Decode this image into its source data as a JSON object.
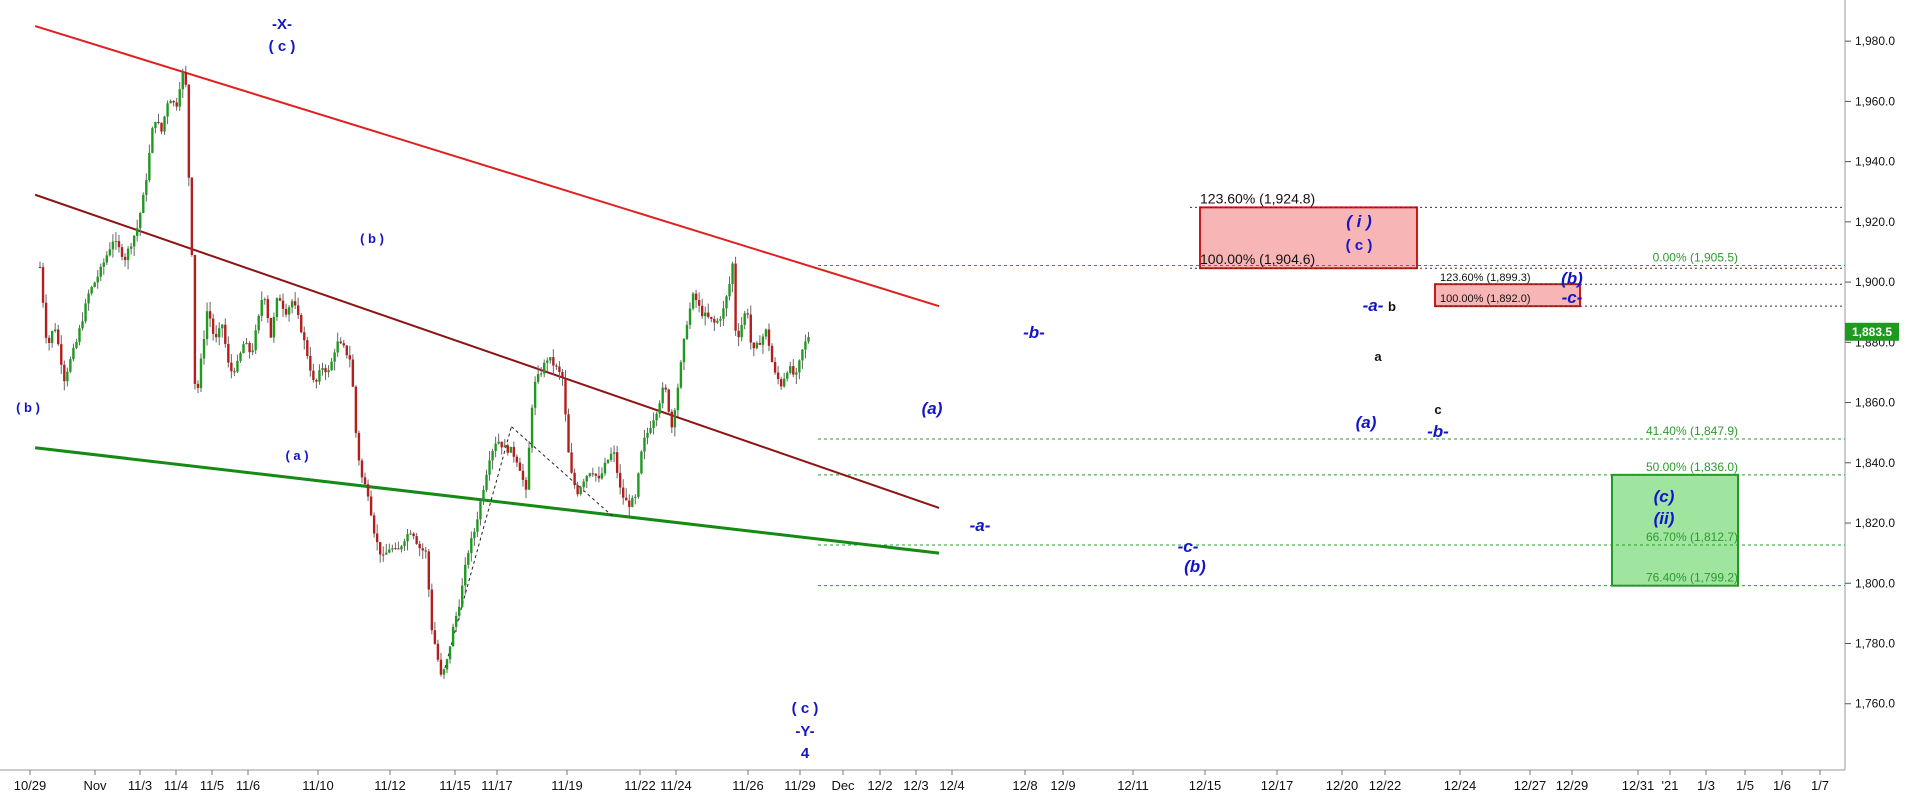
{
  "chart_data": {
    "type": "candlestick",
    "y_axis": {
      "ticks": [
        1760,
        1780,
        1800,
        1820,
        1840,
        1860,
        1880,
        1900,
        1920,
        1940,
        1960,
        1980
      ],
      "tick_labels": [
        "1,760.0",
        "1,780.0",
        "1,800.0",
        "1,820.0",
        "1,840.0",
        "1,860.0",
        "1,880.0",
        "1,900.0",
        "1,920.0",
        "1,940.0",
        "1,960.0",
        "1,980.0"
      ],
      "range": [
        1738,
        1992
      ],
      "position": "right"
    },
    "x_axis": {
      "tick_labels": [
        "10/29",
        "Nov",
        "11/3",
        "11/4",
        "11/5",
        "11/6",
        "11/10",
        "11/12",
        "11/15",
        "11/17",
        "11/19",
        "11/22",
        "11/24",
        "11/26",
        "11/29",
        "Dec",
        "12/2",
        "12/3",
        "12/4",
        "12/8",
        "12/9",
        "12/11",
        "12/15",
        "12/17",
        "12/20",
        "12/22",
        "12/24",
        "12/27",
        "12/29",
        "12/31",
        "'21",
        "1/3",
        "1/5",
        "1/6",
        "1/7"
      ]
    },
    "last_price": {
      "label": "1,883.5",
      "value": 1883.5,
      "color": "#1e9a1e"
    },
    "price_path": [
      [
        0.0,
        1905
      ],
      [
        0.3,
        1878
      ],
      [
        0.6,
        1886
      ],
      [
        1.0,
        1868
      ],
      [
        1.5,
        1880
      ],
      [
        2.0,
        1896
      ],
      [
        2.5,
        1904
      ],
      [
        3.0,
        1914
      ],
      [
        3.5,
        1908
      ],
      [
        4.0,
        1918
      ],
      [
        4.3,
        1930
      ],
      [
        4.7,
        1955
      ],
      [
        5.0,
        1950
      ],
      [
        5.3,
        1962
      ],
      [
        5.6,
        1958
      ],
      [
        5.85,
        1970
      ],
      [
        6.0,
        1965
      ],
      [
        6.1,
        1940
      ],
      [
        6.25,
        1910
      ],
      [
        6.4,
        1858
      ],
      [
        6.6,
        1872
      ],
      [
        6.9,
        1892
      ],
      [
        7.2,
        1880
      ],
      [
        7.5,
        1886
      ],
      [
        7.8,
        1870
      ],
      [
        8.1,
        1872
      ],
      [
        8.4,
        1880
      ],
      [
        8.7,
        1876
      ],
      [
        9.0,
        1888
      ],
      [
        9.2,
        1898
      ],
      [
        9.5,
        1882
      ],
      [
        9.8,
        1896
      ],
      [
        10.1,
        1890
      ],
      [
        10.4,
        1894
      ],
      [
        10.7,
        1886
      ],
      [
        11.0,
        1876
      ],
      [
        11.3,
        1865
      ],
      [
        11.6,
        1872
      ],
      [
        11.9,
        1870
      ],
      [
        12.2,
        1880
      ],
      [
        12.5,
        1878
      ],
      [
        12.8,
        1874
      ],
      [
        13.0,
        1850
      ],
      [
        13.2,
        1836
      ],
      [
        13.5,
        1830
      ],
      [
        13.8,
        1815
      ],
      [
        14.1,
        1808
      ],
      [
        14.4,
        1812
      ],
      [
        14.7,
        1810
      ],
      [
        15.0,
        1815
      ],
      [
        15.3,
        1818
      ],
      [
        15.6,
        1812
      ],
      [
        15.9,
        1810
      ],
      [
        16.1,
        1786
      ],
      [
        16.3,
        1778
      ],
      [
        16.5,
        1769
      ],
      [
        16.7,
        1772
      ],
      [
        17.0,
        1785
      ],
      [
        17.3,
        1795
      ],
      [
        17.6,
        1810
      ],
      [
        17.9,
        1818
      ],
      [
        18.2,
        1830
      ],
      [
        18.5,
        1842
      ],
      [
        18.8,
        1848
      ],
      [
        19.1,
        1845
      ],
      [
        19.4,
        1844
      ],
      [
        19.7,
        1840
      ],
      [
        20.0,
        1830
      ],
      [
        20.3,
        1865
      ],
      [
        20.6,
        1870
      ],
      [
        20.9,
        1875
      ],
      [
        21.2,
        1872
      ],
      [
        21.5,
        1868
      ],
      [
        21.8,
        1838
      ],
      [
        22.1,
        1830
      ],
      [
        22.4,
        1835
      ],
      [
        22.7,
        1838
      ],
      [
        23.0,
        1834
      ],
      [
        23.3,
        1840
      ],
      [
        23.6,
        1844
      ],
      [
        23.9,
        1830
      ],
      [
        24.2,
        1826
      ],
      [
        24.5,
        1828
      ],
      [
        24.8,
        1846
      ],
      [
        25.1,
        1852
      ],
      [
        25.4,
        1858
      ],
      [
        25.7,
        1866
      ],
      [
        26.0,
        1852
      ],
      [
        26.3,
        1868
      ],
      [
        26.6,
        1886
      ],
      [
        26.9,
        1896
      ],
      [
        27.2,
        1890
      ],
      [
        27.5,
        1888
      ],
      [
        27.8,
        1886
      ],
      [
        28.1,
        1890
      ],
      [
        28.35,
        1898
      ],
      [
        28.5,
        1906
      ],
      [
        28.65,
        1880
      ],
      [
        28.8,
        1884
      ],
      [
        29.1,
        1892
      ],
      [
        29.3,
        1876
      ],
      [
        29.6,
        1880
      ],
      [
        29.9,
        1884
      ],
      [
        30.2,
        1870
      ],
      [
        30.5,
        1866
      ],
      [
        30.8,
        1872
      ],
      [
        31.1,
        1868
      ],
      [
        31.4,
        1878
      ],
      [
        31.7,
        1883.5
      ]
    ],
    "trendlines": [
      {
        "name": "upper-channel",
        "color": "#e02020",
        "points": [
          [
            -0.2,
            1985
          ],
          [
            37.0,
            1892
          ]
        ]
      },
      {
        "name": "middle-channel",
        "color": "#8c1414",
        "points": [
          [
            -0.2,
            1929
          ],
          [
            37.0,
            1825
          ]
        ]
      },
      {
        "name": "lower-channel",
        "color": "#158a15",
        "points": [
          [
            -0.2,
            1845
          ],
          [
            37.0,
            1810
          ]
        ]
      }
    ],
    "helper_lines": [
      {
        "points": [
          [
            16.6,
            1770
          ],
          [
            19.4,
            1852
          ]
        ]
      },
      {
        "points": [
          [
            19.4,
            1852
          ],
          [
            23.6,
            1822
          ]
        ]
      }
    ],
    "fib_levels": [
      {
        "label": "0.00% (1,905.5)",
        "value": 1905.5,
        "color": "#2e9a2e"
      },
      {
        "label": "41.40% (1,847.9)",
        "value": 1847.9,
        "color": "#2e9a2e"
      },
      {
        "label": "50.00% (1,836.0)",
        "value": 1836.0,
        "color": "#2e9a2e"
      },
      {
        "label": "66.70% (1,812.7)",
        "value": 1812.7,
        "color": "#2e9a2e"
      },
      {
        "label": "76.40% (1,799.2)",
        "value": 1799.2,
        "color": "#2e9a2e"
      }
    ],
    "projection_levels": [
      {
        "label": "123.60% (1,924.8)",
        "value": 1924.8,
        "color": "#111111"
      },
      {
        "label": "100.00% (1,904.6)",
        "value": 1904.6,
        "color": "#111111"
      },
      {
        "label": "123.60% (1,899.3)",
        "value": 1899.3,
        "color": "#111111"
      },
      {
        "label": "100.00% (1,892.0)",
        "value": 1892.0,
        "color": "#111111"
      }
    ],
    "zones": [
      {
        "name": "resistance-zone-large",
        "fill": "#f7a8a8",
        "stroke": "#cc1a1a",
        "y_range": [
          1904.6,
          1924.8
        ]
      },
      {
        "name": "resistance-zone-small",
        "fill": "#f7a8a8",
        "stroke": "#cc1a1a",
        "y_range": [
          1892.0,
          1899.3
        ]
      },
      {
        "name": "support-zone",
        "fill": "#8ee08e",
        "stroke": "#1e9a1e",
        "y_range": [
          1799.2,
          1836.0
        ]
      }
    ],
    "wave_labels": [
      {
        "text": "-X-",
        "style": "wave-lbl"
      },
      {
        "text": "( c )",
        "style": "wave-lbl"
      },
      {
        "text": "( b )",
        "style": "wave-sm"
      },
      {
        "text": "( b )",
        "style": "wave-sm"
      },
      {
        "text": "( a )",
        "style": "wave-sm"
      },
      {
        "text": "( c )",
        "style": "wave-lbl"
      },
      {
        "text": "-Y-",
        "style": "wave-lbl"
      },
      {
        "text": "4",
        "style": "wave-lbl"
      },
      {
        "text": "(a)",
        "style": "wave-lbl-i"
      },
      {
        "text": "-a-",
        "style": "wave-lbl-i"
      },
      {
        "text": "-b-",
        "style": "wave-lbl-i"
      },
      {
        "text": "-c-",
        "style": "wave-lbl-i"
      },
      {
        "text": "(b)",
        "style": "wave-lbl-i"
      },
      {
        "text": "( i )",
        "style": "wave-lbl-i"
      },
      {
        "text": "( c )",
        "style": "wave-lbl"
      },
      {
        "text": "-a-",
        "style": "wave-lbl-i"
      },
      {
        "text": "b",
        "style": "wave-blk"
      },
      {
        "text": "a",
        "style": "wave-blk"
      },
      {
        "text": "c",
        "style": "wave-blk"
      },
      {
        "text": "(a)",
        "style": "wave-lbl-i"
      },
      {
        "text": "-b-",
        "style": "wave-lbl-i"
      },
      {
        "text": "(b)",
        "style": "wave-lbl-i"
      },
      {
        "text": "-c-",
        "style": "wave-lbl-i"
      },
      {
        "text": "(c)",
        "style": "wave-lbl-i"
      },
      {
        "text": "(ii)",
        "style": "wave-lbl-i"
      }
    ],
    "colors": {
      "up_candle": "#1e9a1e",
      "down_candle": "#b41e1e",
      "grid": "#cccccc"
    }
  }
}
